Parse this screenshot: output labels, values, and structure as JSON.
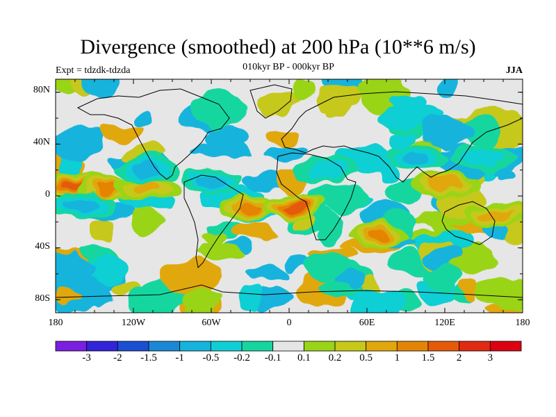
{
  "figure": {
    "title": "Divergence (smoothed) at 200 hPa (10**6 m/s)",
    "subtitle": "010kyr BP - 000kyr BP",
    "experiment": "Expt = tdzdk-tdzda",
    "season": "JJA"
  },
  "chart_data": {
    "type": "heatmap",
    "variable": "200 hPa divergence (smoothed), 010kyr BP minus 000kyr BP",
    "units": "10**6 m/s",
    "lat_ticks": [
      "80N",
      "40N",
      "0",
      "40S",
      "80S"
    ],
    "lat_values": [
      80,
      40,
      0,
      -40,
      -80
    ],
    "lon_ticks": [
      "180",
      "120W",
      "60W",
      "0",
      "60E",
      "120E",
      "180"
    ],
    "lon_values": [
      -180,
      -120,
      -60,
      0,
      60,
      120,
      180
    ],
    "lon_range": [
      -180,
      180
    ],
    "lat_range": [
      -90,
      90
    ],
    "colorbar": {
      "levels": [
        "-3",
        "-2",
        "-1.5",
        "-1",
        "-0.5",
        "-0.2",
        "-0.1",
        "0.1",
        "0.2",
        "0.5",
        "1",
        "1.5",
        "2",
        "3"
      ],
      "colors": [
        "#7b1ee0",
        "#3224d8",
        "#1a4fd2",
        "#1a88d6",
        "#16b4dc",
        "#10cfd4",
        "#16d6a0",
        "#e6e6e6",
        "#9ad418",
        "#c6c81a",
        "#e0a80c",
        "#e48406",
        "#e45a08",
        "#e02a12",
        "#dc0010"
      ]
    },
    "features": [
      {
        "lon": -165,
        "lat": 7,
        "value": 2.0
      },
      {
        "lon": -140,
        "lat": 5,
        "value": 1.2
      },
      {
        "lon": -110,
        "lat": 6,
        "value": 0.8
      },
      {
        "lon": -30,
        "lat": -10,
        "value": 1.5
      },
      {
        "lon": 5,
        "lat": -8,
        "value": 2.0
      },
      {
        "lon": 70,
        "lat": -30,
        "value": 1.2
      },
      {
        "lon": 120,
        "lat": 8,
        "value": 1.0
      },
      {
        "lon": 160,
        "lat": -15,
        "value": 1.0
      },
      {
        "lon": -110,
        "lat": 20,
        "value": -0.8
      },
      {
        "lon": -160,
        "lat": -8,
        "value": -1.0
      },
      {
        "lon": -60,
        "lat": 12,
        "value": -0.8
      },
      {
        "lon": 30,
        "lat": 20,
        "value": -0.6
      },
      {
        "lon": 100,
        "lat": 30,
        "value": -0.8
      },
      {
        "lon": 150,
        "lat": 30,
        "value": -0.6
      }
    ]
  }
}
